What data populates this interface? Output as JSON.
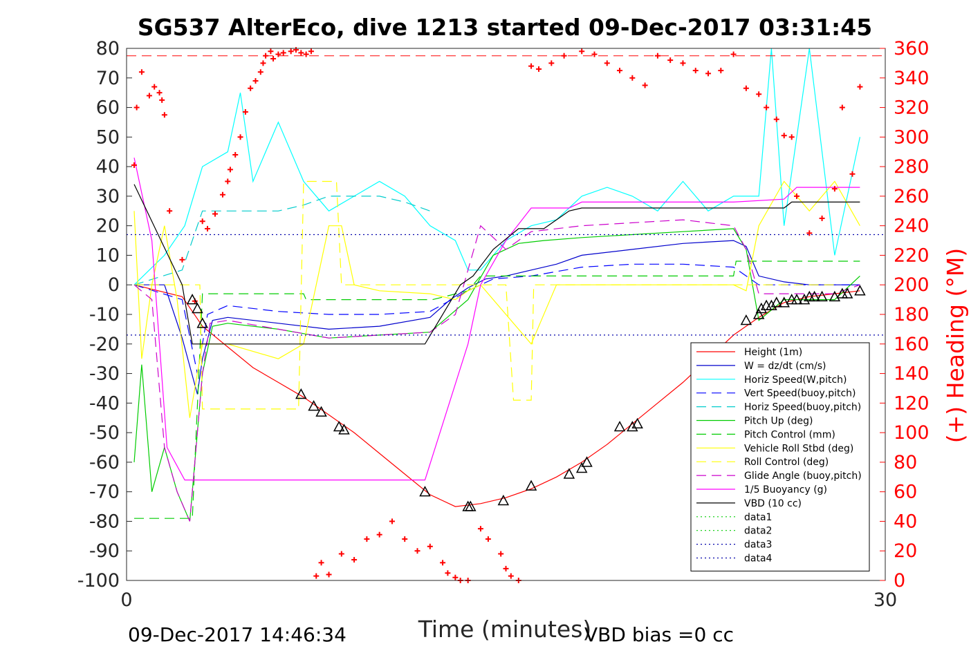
{
  "chart_data": {
    "type": "line",
    "title": "SG537 AlterEco, dive 1213 started 09-Dec-2017 03:31:45",
    "xlabel": "Time (minutes)",
    "ylabel": "",
    "y2label": "(+) Heading (°M)",
    "xlim": [
      0,
      30
    ],
    "ylim": [
      -100,
      80
    ],
    "y2lim": [
      0,
      360
    ],
    "xticks": [
      "0",
      "30"
    ],
    "yticks": [
      "80",
      "70",
      "60",
      "50",
      "40",
      "30",
      "20",
      "10",
      "0",
      "-10",
      "-20",
      "-30",
      "-40",
      "-50",
      "-60",
      "-70",
      "-80",
      "-90",
      "-100"
    ],
    "y2ticks": [
      "360",
      "340",
      "320",
      "300",
      "280",
      "260",
      "240",
      "220",
      "200",
      "180",
      "160",
      "140",
      "120",
      "100",
      "80",
      "60",
      "40",
      "20",
      "0"
    ],
    "grid": false,
    "legend_position": "bottom-right",
    "footer_left": "09-Dec-2017 14:46:34",
    "footer_right": "VBD bias =0 cc",
    "series": [
      {
        "name": "Height (1m)",
        "color": "#ff0000",
        "style": "solid",
        "x": [
          0.3,
          2.2,
          2.6,
          3.0,
          4.0,
          5.0,
          6.0,
          7.0,
          8.0,
          9.0,
          10.0,
          11.0,
          12.0,
          13.0,
          14.0,
          15.0,
          16.0,
          17.0,
          18.0,
          19.0,
          20.0,
          21.0,
          22.0,
          23.0,
          24.0,
          25.0,
          26.0,
          27.0,
          28.0,
          29.0
        ],
        "y": [
          0,
          -4,
          -9,
          -14,
          -21,
          -28,
          -33,
          -38,
          -44,
          -50,
          -57,
          -64,
          -71,
          -75,
          -74,
          -72,
          -69,
          -65,
          -60,
          -54,
          -47,
          -40,
          -33,
          -25,
          -17,
          -11,
          -6,
          -4,
          -3,
          -2
        ]
      },
      {
        "name": "W = dz/dt (cm/s)",
        "color": "#0000cc",
        "style": "solid",
        "x": [
          0.3,
          1.5,
          2.2,
          2.8,
          3.0,
          3.4,
          4.0,
          6.0,
          8.0,
          10.0,
          12.0,
          12.8,
          13.5,
          14.2,
          15.0,
          16.0,
          17.0,
          18.0,
          20.0,
          22.0,
          24.0,
          24.5,
          25.0,
          26.0,
          27.0,
          28.0,
          29.0
        ],
        "y": [
          0,
          0,
          -18,
          -37,
          -25,
          -12,
          -11,
          -13,
          -15,
          -14,
          -11,
          -5,
          -1,
          2,
          3,
          5,
          7,
          10,
          12,
          14,
          15,
          13,
          3,
          1,
          0,
          0,
          0
        ]
      },
      {
        "name": "Horiz Speed(W,pitch)",
        "color": "#00ffff",
        "style": "solid",
        "x": [
          0.3,
          1.5,
          2.3,
          3.0,
          4.0,
          4.5,
          5.0,
          6.0,
          7.0,
          8.0,
          9.0,
          10.0,
          11.0,
          12.0,
          13.0,
          13.5,
          14.0,
          15.0,
          16.0,
          17.0,
          18.0,
          19.0,
          20.0,
          21.0,
          22.0,
          23.0,
          24.0,
          25.0,
          25.5,
          26.0,
          27.0,
          28.0,
          29.0
        ],
        "y": [
          0,
          10,
          20,
          40,
          45,
          65,
          35,
          55,
          35,
          25,
          30,
          35,
          30,
          20,
          15,
          5,
          5,
          15,
          20,
          22,
          30,
          33,
          30,
          25,
          35,
          25,
          30,
          30,
          80,
          20,
          80,
          10,
          50
        ]
      },
      {
        "name": "Vert Speed(buoy,pitch)",
        "color": "#0000ff",
        "style": "dashed",
        "x": [
          0.3,
          2.2,
          2.8,
          3.2,
          4.0,
          6.0,
          8.0,
          10.0,
          12.0,
          13.5,
          14.5,
          16.0,
          18.0,
          20.0,
          22.0,
          24.0,
          25.0,
          26.0,
          29.0
        ],
        "y": [
          0,
          -5,
          -30,
          -10,
          -7,
          -9,
          -10,
          -10,
          -9,
          -2,
          2,
          3,
          6,
          7,
          7,
          6,
          0,
          0,
          0
        ]
      },
      {
        "name": "Horiz Speed(buoy,pitch)",
        "color": "#00cccc",
        "style": "dashed",
        "x": [
          0.3,
          2.2,
          3.0,
          4.0,
          6.0,
          7.0,
          8.0,
          10.0,
          11.0,
          12.0
        ],
        "y": [
          0,
          5,
          25,
          25,
          25,
          27,
          30,
          30,
          28,
          25
        ]
      },
      {
        "name": "Pitch Up (deg)",
        "color": "#00cc00",
        "style": "solid",
        "x": [
          0.3,
          0.6,
          1.0,
          1.5,
          2.0,
          2.5,
          3.0,
          3.4,
          4.0,
          6.0,
          8.0,
          10.0,
          12.0,
          13.5,
          14.5,
          15.5,
          16.5,
          18.0,
          20.0,
          22.0,
          24.0,
          24.5,
          25.0,
          26.0,
          27.0,
          28.0,
          29.0
        ],
        "y": [
          -60,
          -27,
          -70,
          -55,
          -70,
          -80,
          -30,
          -14,
          -13,
          -15,
          -18,
          -17,
          -16,
          -5,
          10,
          14,
          15,
          16,
          17,
          18,
          19,
          12,
          -12,
          -5,
          -5,
          -5,
          3
        ]
      },
      {
        "name": "Pitch Control (mm)",
        "color": "#00cc00",
        "style": "dashed",
        "x": [
          0.3,
          1.0,
          2.0,
          2.6,
          3.0,
          7.0,
          7.1,
          12.0,
          12.1,
          13.5,
          14.0,
          24.0,
          24.1,
          29.0
        ],
        "y": [
          -79,
          -79,
          -79,
          -79,
          -3,
          -3,
          -5,
          -5,
          -5,
          -2,
          3,
          3,
          8,
          8
        ]
      },
      {
        "name": "Vehicle Roll Stbd (deg)",
        "color": "#ffff00",
        "style": "solid",
        "x": [
          0.3,
          0.6,
          1.0,
          1.5,
          2.0,
          2.5,
          3.0,
          4.0,
          6.0,
          7.0,
          8.0,
          8.5,
          9.0,
          10.0,
          12.0,
          13.0,
          13.5,
          14.0,
          16.0,
          17.0,
          18.0,
          20.0,
          22.0,
          24.0,
          24.5,
          25.0,
          26.0,
          27.0,
          28.0,
          29.0
        ],
        "y": [
          25,
          -25,
          0,
          20,
          -5,
          -45,
          -20,
          -20,
          -25,
          -20,
          20,
          20,
          0,
          -2,
          -3,
          -5,
          -2,
          0,
          -20,
          0,
          0,
          0,
          0,
          0,
          -2,
          20,
          35,
          25,
          35,
          20
        ]
      },
      {
        "name": "Roll Control (deg)",
        "color": "#ffff00",
        "style": "dashed",
        "x": [
          0.3,
          2.9,
          3.0,
          6.8,
          7.0,
          8.3,
          8.5,
          15.0,
          15.3,
          16.0,
          16.1,
          28.0
        ],
        "y": [
          0,
          0,
          -42,
          -42,
          35,
          35,
          0,
          0,
          -39,
          -39,
          0,
          0
        ]
      },
      {
        "name": "Glide Angle (buoy,pitch)",
        "color": "#cc00cc",
        "style": "dashed",
        "x": [
          0.3,
          1.0,
          1.5,
          2.0,
          2.5,
          3.0,
          3.3,
          4.0,
          6.0,
          8.0,
          10.0,
          12.0,
          13.0,
          14.0,
          15.0,
          16.0,
          18.0,
          20.0,
          22.0,
          24.0,
          24.5,
          25.0,
          26.0,
          27.0,
          28.0,
          29.0
        ],
        "y": [
          0,
          -5,
          -55,
          -70,
          -80,
          -30,
          -13,
          -12,
          -15,
          -18,
          -17,
          -16,
          -10,
          20,
          12,
          18,
          20,
          21,
          22,
          20,
          12,
          -3,
          -3,
          -3,
          -3,
          0
        ]
      },
      {
        "name": "1/5 Buoyancy (g)",
        "color": "#ff00ff",
        "style": "solid",
        "x": [
          0.3,
          1.0,
          1.6,
          2.3,
          2.6,
          3.0,
          6.0,
          9.0,
          11.8,
          13.5,
          14.0,
          15.0,
          16.0,
          17.5,
          18.0,
          20.0,
          22.0,
          24.0,
          26.0,
          26.5,
          29.0
        ],
        "y": [
          43,
          15,
          -55,
          -66,
          -66,
          -66,
          -66,
          -66,
          -66,
          -20,
          0,
          15,
          26,
          26,
          28,
          28,
          28,
          28,
          29,
          33,
          33
        ]
      },
      {
        "name": "VBD (10 cc)",
        "color": "#000000",
        "style": "solid",
        "x": [
          0.3,
          2.2,
          2.6,
          3.0,
          6.0,
          9.0,
          11.8,
          13.2,
          13.7,
          14.5,
          15.5,
          16.5,
          17.0,
          17.5,
          18.0,
          24.0,
          26.0,
          26.3,
          29.0
        ],
        "y": [
          34,
          0,
          -20,
          -20,
          -20,
          -20,
          -20,
          0,
          3,
          12,
          19,
          19,
          22,
          25,
          26,
          26,
          26,
          28,
          28
        ]
      },
      {
        "name": "data1",
        "color": "#00cc00",
        "style": "dotted",
        "x": [],
        "y": []
      },
      {
        "name": "data2",
        "color": "#00cc00",
        "style": "dotted",
        "x": [],
        "y": []
      },
      {
        "name": "data3",
        "color": "#0000aa",
        "style": "dotted",
        "x": [
          0,
          30
        ],
        "y": [
          17,
          17
        ]
      },
      {
        "name": "data4",
        "color": "#0000aa",
        "style": "dotted",
        "x": [
          0,
          30
        ],
        "y": [
          -17,
          -17
        ]
      }
    ],
    "reference_lines": [
      {
        "color": "#ff0000",
        "style": "dashed",
        "axis": "y2",
        "y": [
          355,
          355
        ]
      }
    ],
    "heading_points": {
      "color": "#ff0000",
      "marker": "+",
      "axis": "y2",
      "x": [
        0.3,
        0.4,
        0.6,
        0.9,
        1.1,
        1.3,
        1.4,
        1.5,
        1.7,
        2.2,
        2.7,
        3.0,
        3.2,
        3.5,
        3.8,
        4.0,
        4.1,
        4.3,
        4.5,
        4.7,
        4.9,
        5.1,
        5.3,
        5.4,
        5.5,
        5.7,
        5.8,
        6.0,
        6.2,
        6.5,
        6.7,
        6.9,
        7.1,
        7.3,
        7.5,
        7.7,
        8.0,
        8.5,
        9.0,
        9.5,
        10.0,
        10.5,
        11.0,
        11.5,
        12.0,
        12.5,
        12.7,
        13.0,
        13.2,
        13.5,
        14.0,
        14.3,
        14.8,
        15.0,
        15.2,
        15.5,
        16.0,
        16.3,
        16.8,
        17.3,
        18.0,
        18.5,
        19.0,
        19.5,
        20.0,
        20.5,
        21.0,
        21.5,
        22.0,
        22.5,
        23.0,
        23.5,
        24.0,
        24.5,
        25.0,
        25.3,
        25.7,
        26.0,
        26.3,
        26.5,
        27.0,
        27.5,
        28.0,
        28.3,
        28.7,
        29.0
      ],
      "y": [
        281,
        320,
        344,
        328,
        334,
        330,
        325,
        315,
        250,
        217,
        189,
        243,
        238,
        248,
        261,
        270,
        278,
        288,
        300,
        317,
        333,
        338,
        344,
        350,
        355,
        358,
        353,
        356,
        357,
        358,
        359,
        357,
        356,
        358,
        3,
        12,
        4,
        18,
        14,
        28,
        31,
        40,
        28,
        20,
        23,
        12,
        5,
        2,
        0,
        0,
        35,
        28,
        18,
        8,
        3,
        0,
        348,
        346,
        350,
        355,
        358,
        356,
        350,
        345,
        340,
        335,
        355,
        352,
        350,
        345,
        343,
        345,
        356,
        333,
        329,
        320,
        312,
        301,
        300,
        260,
        235,
        245,
        265,
        320,
        275,
        334
      ]
    },
    "markers": {
      "color": "#000000",
      "marker": "triangle",
      "axis": "y",
      "x": [
        2.6,
        2.8,
        3.0,
        6.9,
        7.4,
        7.7,
        8.4,
        8.6,
        11.8,
        13.5,
        13.6,
        14.9,
        16.0,
        17.5,
        18.0,
        18.2,
        19.5,
        20.0,
        20.2,
        24.5,
        25.0,
        25.1,
        25.3,
        25.5,
        25.7,
        26.0,
        26.3,
        26.5,
        26.8,
        27.0,
        27.2,
        27.5,
        28.0,
        28.3,
        28.5,
        29.0
      ],
      "y": [
        -5,
        -8,
        -13,
        -37,
        -41,
        -43,
        -48,
        -49,
        -70,
        -75,
        -75,
        -73,
        -68,
        -64,
        -62,
        -60,
        -48,
        -48,
        -47,
        -12,
        -10,
        -8,
        -7,
        -7,
        -6,
        -6,
        -5,
        -5,
        -5,
        -4,
        -4,
        -4,
        -4,
        -3,
        -3,
        -2
      ]
    }
  }
}
